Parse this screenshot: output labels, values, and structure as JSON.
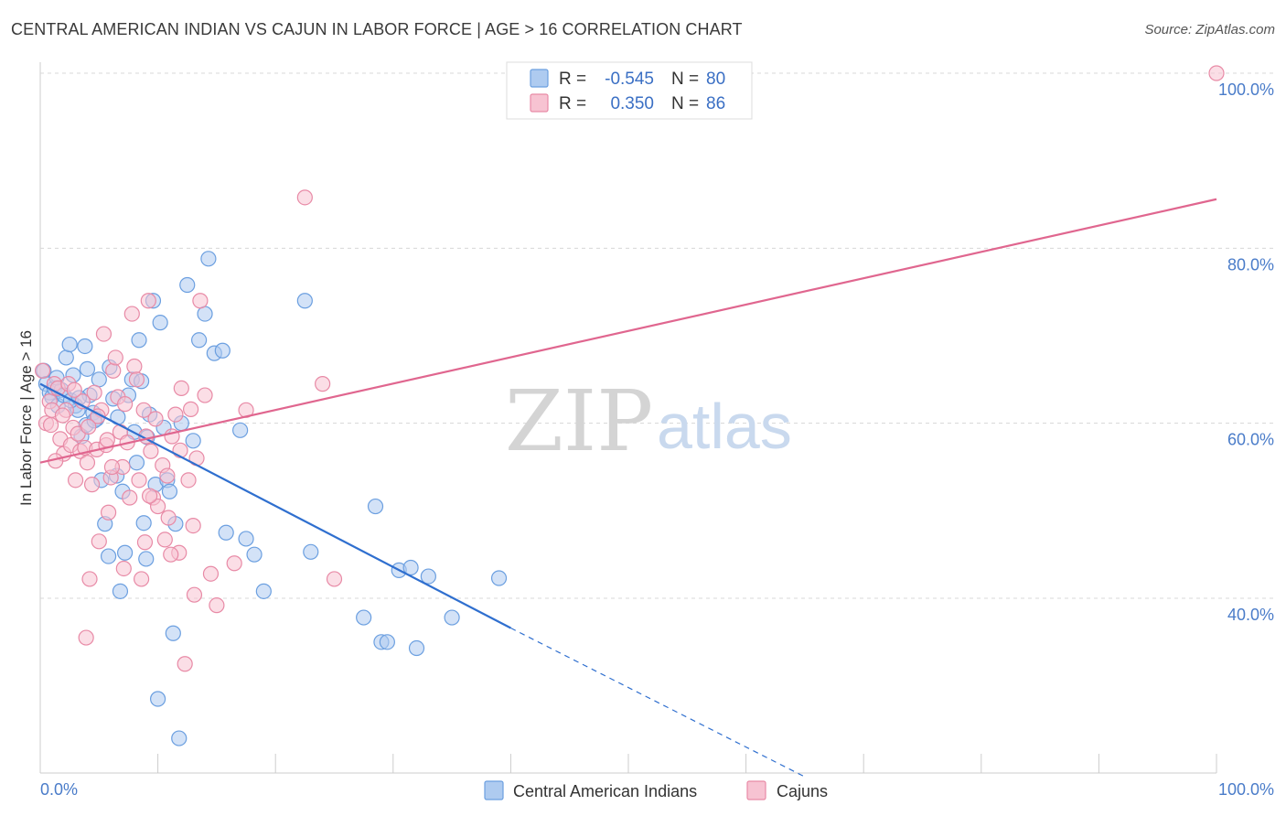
{
  "title": "CENTRAL AMERICAN INDIAN VS CAJUN IN LABOR FORCE | AGE > 16 CORRELATION CHART",
  "source": "Source: ZipAtlas.com",
  "watermark": {
    "part1": "ZIP",
    "part2": "atlas"
  },
  "legend": {
    "rows": [
      {
        "r_label": "R =",
        "r_value": "-0.545",
        "n_label": "N =",
        "n_value": "80",
        "color": "#aecbf0",
        "stroke": "#6b9fe0"
      },
      {
        "r_label": "R =",
        "r_value": "0.350",
        "n_label": "N =",
        "n_value": "86",
        "color": "#f7c3d2",
        "stroke": "#e88aa6"
      }
    ]
  },
  "bottom_legend": [
    {
      "label": "Central American Indians",
      "color": "#aecbf0",
      "stroke": "#6b9fe0"
    },
    {
      "label": "Cajuns",
      "color": "#f7c3d2",
      "stroke": "#e88aa6"
    }
  ],
  "chart_data": {
    "type": "scatter",
    "title": "CENTRAL AMERICAN INDIAN VS CAJUN IN LABOR FORCE | AGE > 16 CORRELATION CHART",
    "xlabel": "",
    "ylabel": "In Labor Force | Age > 16",
    "xlim": [
      0,
      100
    ],
    "ylim": [
      20,
      102
    ],
    "x_tick_labels": [
      "0.0%",
      "100.0%"
    ],
    "y_ticks": [
      40,
      60,
      80,
      100
    ],
    "y_tick_labels": [
      "40.0%",
      "60.0%",
      "80.0%",
      "100.0%"
    ],
    "grid": true,
    "series": [
      {
        "name": "Central American Indians",
        "color": "#6b9fe0",
        "fill": "#aecbf0",
        "points": [
          [
            0.3,
            66
          ],
          [
            0.5,
            64.5
          ],
          [
            0.8,
            63.5
          ],
          [
            1.0,
            63
          ],
          [
            1.2,
            64
          ],
          [
            1.5,
            62
          ],
          [
            1.8,
            63.8
          ],
          [
            2.0,
            63.2
          ],
          [
            2.2,
            67.5
          ],
          [
            2.5,
            69
          ],
          [
            2.8,
            65.5
          ],
          [
            3.0,
            62
          ],
          [
            3.2,
            61.5
          ],
          [
            3.5,
            58.5
          ],
          [
            3.8,
            68.8
          ],
          [
            4.0,
            66.2
          ],
          [
            4.2,
            63.2
          ],
          [
            4.5,
            61.2
          ],
          [
            4.8,
            60.5
          ],
          [
            5.0,
            65
          ],
          [
            5.2,
            53.5
          ],
          [
            5.5,
            48.5
          ],
          [
            5.8,
            44.8
          ],
          [
            6.2,
            62.8
          ],
          [
            6.5,
            54
          ],
          [
            6.8,
            40.8
          ],
          [
            7.0,
            52.2
          ],
          [
            7.2,
            45.2
          ],
          [
            7.5,
            63.2
          ],
          [
            7.8,
            65
          ],
          [
            8.0,
            59
          ],
          [
            8.2,
            55.5
          ],
          [
            8.4,
            69.5
          ],
          [
            8.6,
            64.8
          ],
          [
            8.8,
            48.6
          ],
          [
            9.0,
            44.5
          ],
          [
            9.3,
            61
          ],
          [
            9.6,
            74
          ],
          [
            9.8,
            53
          ],
          [
            10.0,
            28.5
          ],
          [
            10.2,
            71.5
          ],
          [
            10.5,
            59.5
          ],
          [
            10.8,
            53.5
          ],
          [
            11.0,
            52.2
          ],
          [
            11.3,
            36
          ],
          [
            11.5,
            48.5
          ],
          [
            11.8,
            24
          ],
          [
            12.0,
            60
          ],
          [
            12.5,
            75.8
          ],
          [
            13.0,
            58
          ],
          [
            13.5,
            69.5
          ],
          [
            14.0,
            72.5
          ],
          [
            14.3,
            78.8
          ],
          [
            14.8,
            68
          ],
          [
            15.5,
            68.3
          ],
          [
            15.8,
            47.5
          ],
          [
            17.0,
            59.2
          ],
          [
            17.5,
            46.8
          ],
          [
            18.2,
            45
          ],
          [
            19.0,
            40.8
          ],
          [
            22.5,
            74
          ],
          [
            23.0,
            45.3
          ],
          [
            27.5,
            37.8
          ],
          [
            28.5,
            50.5
          ],
          [
            29.0,
            35
          ],
          [
            29.5,
            35
          ],
          [
            30.5,
            43.2
          ],
          [
            31.5,
            43.5
          ],
          [
            32.0,
            34.3
          ],
          [
            33.0,
            42.5
          ],
          [
            35.0,
            37.8
          ],
          [
            39.0,
            42.3
          ],
          [
            2.6,
            62.6
          ],
          [
            3.9,
            59.8
          ],
          [
            5.9,
            66.4
          ],
          [
            6.6,
            60.7
          ],
          [
            9.1,
            58.4
          ],
          [
            1.4,
            65.2
          ],
          [
            3.3,
            62.9
          ],
          [
            4.6,
            60.3
          ]
        ]
      },
      {
        "name": "Cajuns",
        "color": "#e88aa6",
        "fill": "#f7c3d2",
        "points": [
          [
            0.2,
            66
          ],
          [
            0.5,
            60
          ],
          [
            0.8,
            62.5
          ],
          [
            1.0,
            61.5
          ],
          [
            1.2,
            64.5
          ],
          [
            1.5,
            64
          ],
          [
            1.7,
            58.2
          ],
          [
            2.0,
            56.5
          ],
          [
            2.2,
            61.5
          ],
          [
            2.4,
            64.5
          ],
          [
            2.6,
            57.5
          ],
          [
            2.8,
            59.5
          ],
          [
            3.0,
            53.5
          ],
          [
            3.2,
            58.8
          ],
          [
            3.4,
            56.8
          ],
          [
            3.6,
            62.5
          ],
          [
            3.8,
            57.2
          ],
          [
            4.0,
            55.5
          ],
          [
            4.2,
            42.2
          ],
          [
            4.4,
            53
          ],
          [
            4.6,
            63.5
          ],
          [
            4.8,
            57
          ],
          [
            5.0,
            46.5
          ],
          [
            5.2,
            61.5
          ],
          [
            5.4,
            70.2
          ],
          [
            5.6,
            57.5
          ],
          [
            5.8,
            49.8
          ],
          [
            6.0,
            53.8
          ],
          [
            6.2,
            66
          ],
          [
            6.4,
            67.5
          ],
          [
            6.6,
            63
          ],
          [
            6.8,
            59
          ],
          [
            7.0,
            55
          ],
          [
            7.2,
            62.2
          ],
          [
            7.4,
            57.8
          ],
          [
            7.6,
            51.5
          ],
          [
            7.8,
            72.5
          ],
          [
            8.0,
            66.5
          ],
          [
            8.2,
            65
          ],
          [
            8.4,
            53.5
          ],
          [
            8.6,
            42.2
          ],
          [
            8.8,
            61.5
          ],
          [
            9.0,
            58.5
          ],
          [
            9.2,
            74
          ],
          [
            9.4,
            56.8
          ],
          [
            9.6,
            51.5
          ],
          [
            9.8,
            60.5
          ],
          [
            10.0,
            50.5
          ],
          [
            10.4,
            55.2
          ],
          [
            10.8,
            54
          ],
          [
            11.2,
            58.5
          ],
          [
            11.5,
            61
          ],
          [
            11.8,
            45.2
          ],
          [
            12.0,
            64
          ],
          [
            12.3,
            32.5
          ],
          [
            12.6,
            53.5
          ],
          [
            13.0,
            48.3
          ],
          [
            13.3,
            56
          ],
          [
            13.6,
            74
          ],
          [
            14.0,
            63.2
          ],
          [
            14.5,
            42.8
          ],
          [
            15.0,
            39.2
          ],
          [
            16.5,
            44
          ],
          [
            17.5,
            61.5
          ],
          [
            22.5,
            85.8
          ],
          [
            24.0,
            64.5
          ],
          [
            25.0,
            42.2
          ],
          [
            100,
            100
          ],
          [
            3.9,
            35.5
          ],
          [
            6.1,
            55
          ],
          [
            7.1,
            43.4
          ],
          [
            10.6,
            46.7
          ],
          [
            4.9,
            60.8
          ],
          [
            5.7,
            58.1
          ],
          [
            9.3,
            51.7
          ],
          [
            11.9,
            56.9
          ],
          [
            12.8,
            61.6
          ],
          [
            1.9,
            60.9
          ],
          [
            2.9,
            63.8
          ],
          [
            4.1,
            59.6
          ],
          [
            0.9,
            59.8
          ],
          [
            1.3,
            55.7
          ],
          [
            8.9,
            46.4
          ],
          [
            10.9,
            49.2
          ],
          [
            11.1,
            45
          ],
          [
            13.1,
            40.4
          ]
        ]
      }
    ],
    "trend_lines": [
      {
        "series": "Central American Indians",
        "x_start": 0,
        "y_start": 64.5,
        "x_solid_end": 40,
        "y_solid_end": 36.6,
        "x_dash_end": 65,
        "y_dash_end": 19.6
      },
      {
        "series": "Cajuns",
        "x_start": 0,
        "y_start": 55.5,
        "x_end": 100,
        "y_end": 85.6
      }
    ]
  }
}
